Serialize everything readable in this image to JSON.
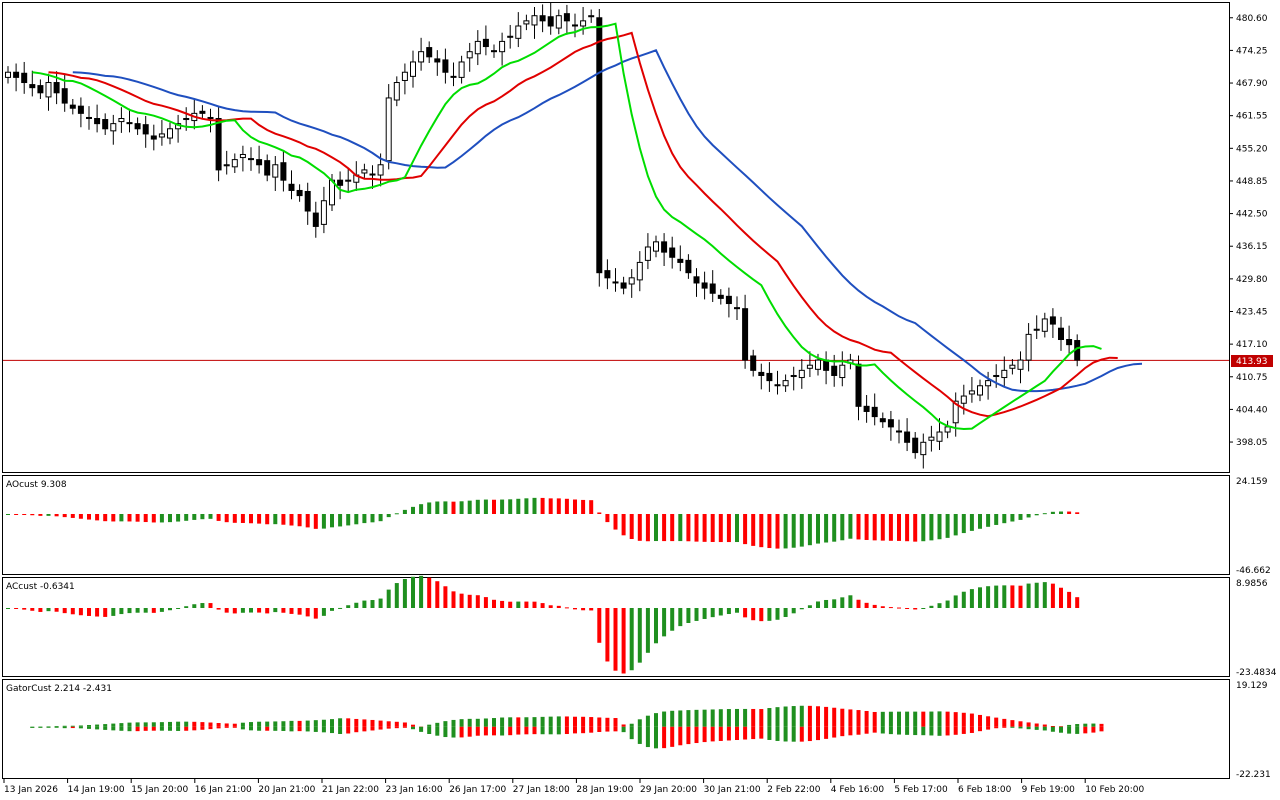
{
  "main": {
    "current_price": "413.93",
    "price_labels": [
      "480.60",
      "474.25",
      "467.90",
      "461.55",
      "455.20",
      "448.85",
      "442.50",
      "436.15",
      "429.80",
      "423.45",
      "417.10",
      "410.75",
      "404.40",
      "398.05"
    ],
    "price_min": 393.0,
    "price_max": 482.5,
    "colors": {
      "up_candle": "#ffffff",
      "down_candle": "#000000",
      "jaw": "#1f4fbf",
      "teeth": "#e00000",
      "lips": "#00dd00",
      "price_line": "#c00000"
    }
  },
  "ao": {
    "title": "AOcust 9.308",
    "max_label": "24.159",
    "min_label": "-46.662",
    "range": [
      -46.662,
      24.159
    ],
    "colors": {
      "up": "#1f8f1f",
      "down": "#ff0000"
    }
  },
  "ac": {
    "title": "ACcust -0.6341",
    "max_label": "8.9856",
    "min_label": "-23.4834",
    "range": [
      -23.4834,
      8.9856
    ]
  },
  "gator": {
    "title": "GatorCust 2.214 -2.431",
    "max_label": "19.129",
    "min_label": "-22.231",
    "range": [
      -22.231,
      19.129
    ]
  },
  "time_axis": {
    "labels": [
      "13 Jan 2026",
      "14 Jan 19:00",
      "15 Jan 20:00",
      "16 Jan 21:00",
      "20 Jan 21:00",
      "21 Jan 22:00",
      "23 Jan 16:00",
      "26 Jan 17:00",
      "27 Jan 18:00",
      "28 Jan 19:00",
      "29 Jan 20:00",
      "30 Jan 21:00",
      "2 Feb 22:00",
      "4 Feb 16:00",
      "5 Feb 17:00",
      "6 Feb 18:00",
      "9 Feb 19:00",
      "10 Feb 20:00"
    ]
  },
  "chart_data": {
    "type": "candlestick",
    "closes": [
      470,
      469,
      468,
      467,
      466,
      468,
      466,
      464,
      463,
      462,
      461,
      460,
      459,
      460,
      461,
      460,
      459,
      458,
      457,
      458,
      459,
      460,
      461,
      462,
      462,
      461,
      451,
      452,
      453,
      454,
      453,
      452,
      450,
      452,
      449,
      447,
      446,
      443,
      440,
      445,
      449,
      448,
      449,
      450,
      451,
      450,
      452,
      465,
      468,
      470,
      472,
      474,
      473,
      472,
      470,
      469,
      472,
      474,
      476,
      475,
      474,
      476,
      477,
      479,
      480,
      481,
      480,
      479,
      481,
      480,
      479,
      480,
      481,
      431,
      430,
      429,
      428,
      430,
      433,
      436,
      437,
      435,
      434,
      433,
      431,
      429,
      428,
      427,
      426,
      425,
      424,
      414,
      412,
      411,
      410,
      409,
      410,
      411,
      412,
      413,
      414,
      412,
      411,
      413,
      414,
      405,
      404,
      403,
      402,
      401,
      400,
      398,
      396,
      398,
      399,
      400,
      401,
      406,
      407,
      408,
      409,
      410,
      411,
      412,
      413,
      414,
      419,
      420,
      422,
      421,
      418,
      417,
      414
    ]
  }
}
